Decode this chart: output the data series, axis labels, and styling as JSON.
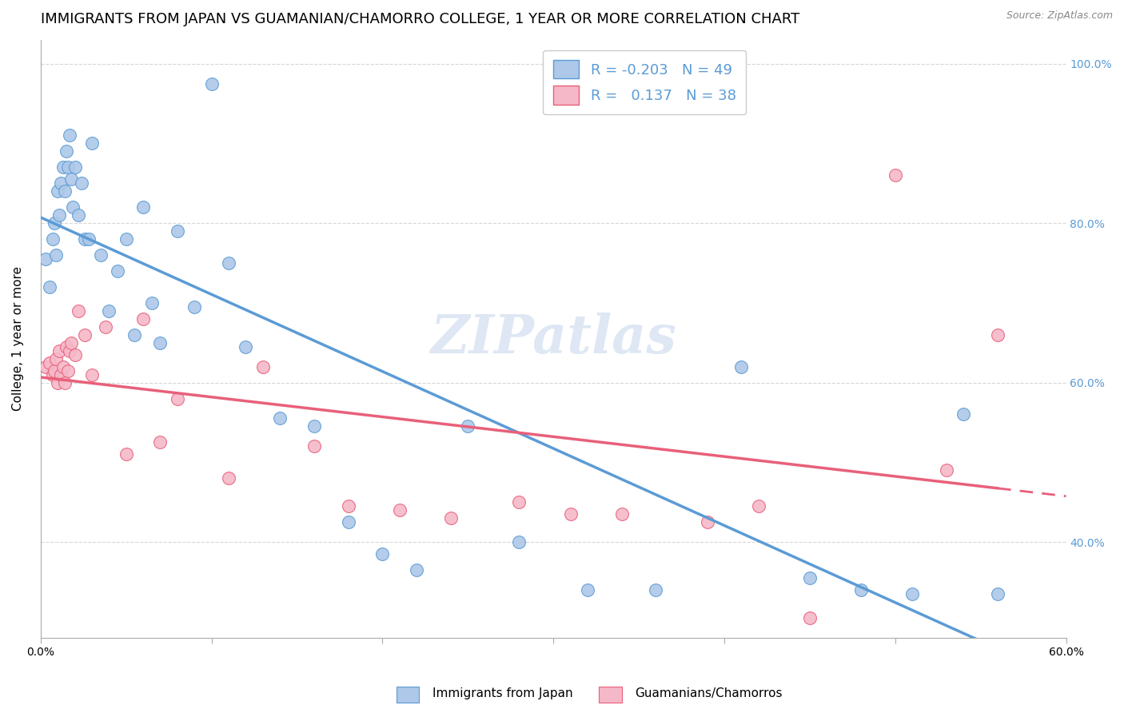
{
  "title": "IMMIGRANTS FROM JAPAN VS GUAMANIAN/CHAMORRO COLLEGE, 1 YEAR OR MORE CORRELATION CHART",
  "source": "Source: ZipAtlas.com",
  "ylabel": "College, 1 year or more",
  "xlim": [
    0.0,
    0.6
  ],
  "ylim": [
    0.28,
    1.03
  ],
  "xticks": [
    0.0,
    0.1,
    0.2,
    0.3,
    0.4,
    0.5,
    0.6
  ],
  "xticklabels": [
    "0.0%",
    "",
    "",
    "",
    "",
    "",
    "60.0%"
  ],
  "yticks": [
    0.4,
    0.6,
    0.8,
    1.0
  ],
  "yticklabels": [
    "40.0%",
    "60.0%",
    "80.0%",
    "100.0%"
  ],
  "legend_labels": [
    "Immigrants from Japan",
    "Guamanians/Chamorros"
  ],
  "legend_R": [
    "-0.203",
    "0.137"
  ],
  "legend_N": [
    "49",
    "38"
  ],
  "blue_color": "#adc8e8",
  "pink_color": "#f5b8c8",
  "blue_line_color": "#5b9bd5",
  "pink_line_color": "#e8607a",
  "watermark": "ZIPatlas",
  "blue_x": [
    0.003,
    0.005,
    0.007,
    0.008,
    0.009,
    0.01,
    0.011,
    0.012,
    0.013,
    0.014,
    0.015,
    0.016,
    0.017,
    0.018,
    0.019,
    0.02,
    0.022,
    0.024,
    0.026,
    0.028,
    0.03,
    0.035,
    0.04,
    0.045,
    0.05,
    0.055,
    0.06,
    0.065,
    0.07,
    0.08,
    0.09,
    0.1,
    0.11,
    0.12,
    0.14,
    0.16,
    0.18,
    0.2,
    0.22,
    0.25,
    0.28,
    0.32,
    0.36,
    0.41,
    0.45,
    0.48,
    0.51,
    0.54,
    0.56
  ],
  "blue_y": [
    0.755,
    0.72,
    0.78,
    0.8,
    0.76,
    0.84,
    0.81,
    0.85,
    0.87,
    0.84,
    0.89,
    0.87,
    0.91,
    0.855,
    0.82,
    0.87,
    0.81,
    0.85,
    0.78,
    0.78,
    0.9,
    0.76,
    0.69,
    0.74,
    0.78,
    0.66,
    0.82,
    0.7,
    0.65,
    0.79,
    0.695,
    0.975,
    0.75,
    0.645,
    0.555,
    0.545,
    0.425,
    0.385,
    0.365,
    0.545,
    0.4,
    0.34,
    0.34,
    0.62,
    0.355,
    0.34,
    0.335,
    0.56,
    0.335
  ],
  "pink_x": [
    0.003,
    0.005,
    0.007,
    0.008,
    0.009,
    0.01,
    0.011,
    0.012,
    0.013,
    0.014,
    0.015,
    0.016,
    0.017,
    0.018,
    0.02,
    0.022,
    0.026,
    0.03,
    0.038,
    0.05,
    0.06,
    0.07,
    0.08,
    0.11,
    0.13,
    0.16,
    0.18,
    0.21,
    0.24,
    0.28,
    0.31,
    0.34,
    0.39,
    0.42,
    0.45,
    0.5,
    0.53,
    0.56
  ],
  "pink_y": [
    0.62,
    0.625,
    0.61,
    0.615,
    0.63,
    0.6,
    0.64,
    0.61,
    0.62,
    0.6,
    0.645,
    0.615,
    0.64,
    0.65,
    0.635,
    0.69,
    0.66,
    0.61,
    0.67,
    0.51,
    0.68,
    0.525,
    0.58,
    0.48,
    0.62,
    0.52,
    0.445,
    0.44,
    0.43,
    0.45,
    0.435,
    0.435,
    0.425,
    0.445,
    0.305,
    0.86,
    0.49,
    0.66
  ],
  "grid_color": "#cccccc",
  "background_color": "#ffffff",
  "title_fontsize": 13,
  "axis_label_fontsize": 11,
  "tick_fontsize": 10,
  "tick_color_right": "#5b9bd5"
}
